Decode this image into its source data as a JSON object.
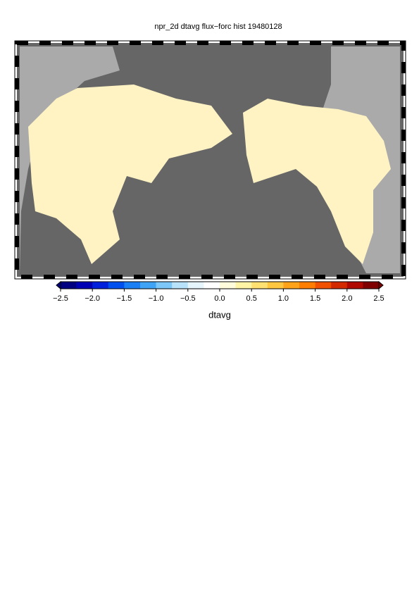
{
  "chart_data": {
    "type": "map",
    "title": "npr_2d dtavg flux−forc hist 19480128",
    "colorbar_label": "dtavg",
    "clim": [
      -2.5,
      2.5
    ],
    "cticks": [
      {
        "value": -2.5,
        "label": "−2.5"
      },
      {
        "value": -2,
        "label": "−2.0"
      },
      {
        "value": -1.5,
        "label": "−1.5"
      },
      {
        "value": -1,
        "label": "−1.0"
      },
      {
        "value": -0.5,
        "label": "−0.5"
      },
      {
        "value": 0,
        "label": "0.0"
      },
      0.5,
      {
        "value": 1,
        "label": "1.0"
      },
      1.5,
      {
        "value": 2,
        "label": "2.0"
      },
      2.5
    ],
    "colormap": [
      "#000080",
      "#0000b4",
      "#0020dc",
      "#0050f0",
      "#1a7ef5",
      "#3fa4f5",
      "#7cc6f8",
      "#b8e2fa",
      "#e6f4fb",
      "#ffffff",
      "#fffcdc",
      "#fff3a6",
      "#ffe070",
      "#ffc640",
      "#ffa41a",
      "#ff7d00",
      "#f05000",
      "#d42a00",
      "#b00a00",
      "#800000"
    ]
  }
}
